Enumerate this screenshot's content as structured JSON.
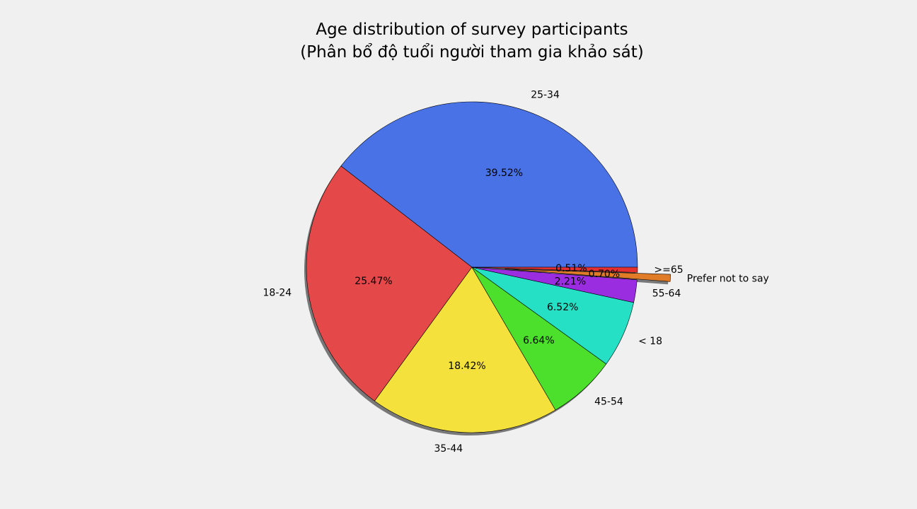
{
  "chart_data": {
    "type": "pie",
    "title_line1": "Age distribution of survey participants",
    "title_line2": "(Phân bổ độ tuổi người tham gia khảo sát)",
    "slices": [
      {
        "label": "25-34",
        "value": 39.52,
        "pct_label": "39.52%",
        "color": "#4872e6",
        "explode": 0
      },
      {
        "label": "18-24",
        "value": 25.47,
        "pct_label": "25.47%",
        "color": "#e54848",
        "explode": 0
      },
      {
        "label": "35-44",
        "value": 18.42,
        "pct_label": "18.42%",
        "color": "#f5e13c",
        "explode": 0
      },
      {
        "label": "45-54",
        "value": 6.64,
        "pct_label": "6.64%",
        "color": "#4ce02c",
        "explode": 0
      },
      {
        "label": "< 18",
        "value": 6.52,
        "pct_label": "6.52%",
        "color": "#26e0c6",
        "explode": 0
      },
      {
        "label": "55-64",
        "value": 2.21,
        "pct_label": "2.21%",
        "color": "#9b2de0",
        "explode": 0
      },
      {
        "label": "Prefer not to say",
        "value": 0.7,
        "pct_label": "0.70%",
        "color": "#e07b28",
        "explode": 0.2
      },
      {
        "label": ">=65",
        "value": 0.51,
        "pct_label": "0.51%",
        "color": "#e53030",
        "explode": 0
      }
    ],
    "start_angle": 0,
    "direction": "counterclockwise",
    "shadow": true,
    "edge_color": "#000000"
  }
}
